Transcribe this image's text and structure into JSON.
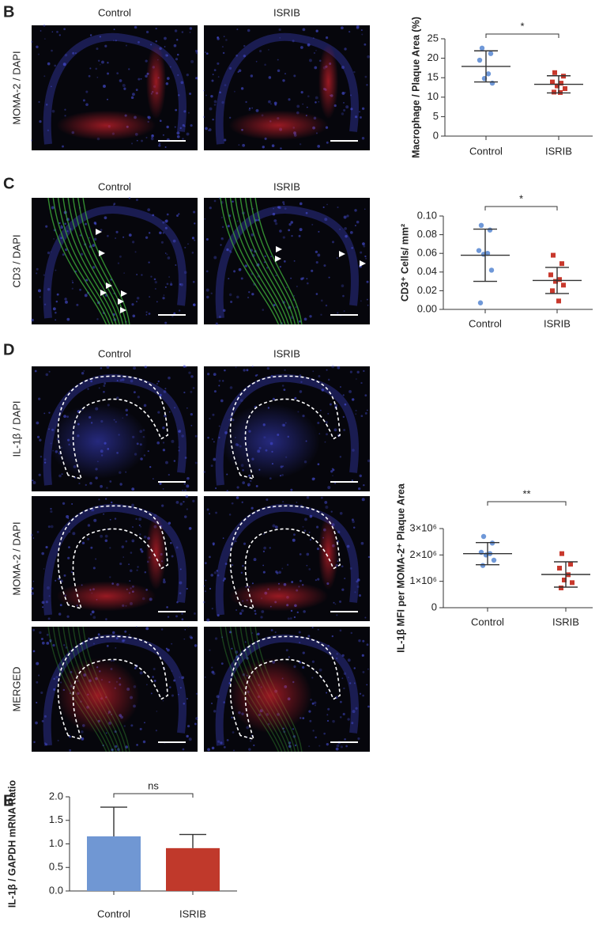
{
  "figure": {
    "B": {
      "label": "B",
      "columns": [
        "Control",
        "ISRIB"
      ],
      "rows": [
        "MOMA-2 / DAPI"
      ]
    },
    "C": {
      "label": "C",
      "columns": [
        "Control",
        "ISRIB"
      ],
      "rows": [
        "CD3 / DAPI"
      ]
    },
    "D": {
      "label": "D",
      "columns": [
        "Control",
        "ISRIB"
      ],
      "rows": [
        "IL-1β / DAPI",
        "MOMA-2 / DAPI",
        "MERGED"
      ]
    },
    "E": {
      "label": "E"
    }
  },
  "chart_data": [
    {
      "type": "dotplot",
      "ylabel": "Macrophage / Plaque Area (%)",
      "categories": [
        "Control",
        "ISRIB"
      ],
      "groups": [
        {
          "color": "#6f98d8",
          "marker": "circle",
          "values": [
            22.6,
            21.2,
            19.5,
            16.0,
            14.8,
            13.6
          ],
          "mean": 17.9,
          "sd": 4.0
        },
        {
          "color": "#c8382c",
          "marker": "square",
          "values": [
            16.3,
            15.4,
            13.9,
            13.6,
            12.9,
            12.2,
            11.3,
            11.2
          ],
          "mean": 13.3,
          "sd": 2.2
        }
      ],
      "ylim": [
        0,
        25
      ],
      "yticks": [
        0,
        5,
        10,
        15,
        20,
        25
      ],
      "annotation": "*"
    },
    {
      "type": "dotplot",
      "ylabel": "CD3⁺ Cells/ mm²",
      "categories": [
        "Control",
        "ISRIB"
      ],
      "groups": [
        {
          "color": "#6f98d8",
          "marker": "circle",
          "values": [
            0.09,
            0.085,
            0.063,
            0.06,
            0.059,
            0.042,
            0.007
          ],
          "mean": 0.058,
          "sd": 0.028
        },
        {
          "color": "#c8382c",
          "marker": "square",
          "values": [
            0.058,
            0.049,
            0.037,
            0.032,
            0.03,
            0.026,
            0.02,
            0.009
          ],
          "mean": 0.031,
          "sd": 0.014
        }
      ],
      "ylim": [
        0,
        0.1
      ],
      "yticks": [
        {
          "value": 0,
          "label": "0.00"
        },
        {
          "value": 0.02,
          "label": "0.02"
        },
        {
          "value": 0.04,
          "label": "0.04"
        },
        {
          "value": 0.06,
          "label": "0.06"
        },
        {
          "value": 0.08,
          "label": "0.08"
        },
        {
          "value": 0.1,
          "label": "0.10"
        }
      ],
      "annotation": "*"
    },
    {
      "type": "dotplot",
      "ylabel": "IL-1β MFI per MOMA-2⁺ Plaque Area",
      "categories": [
        "Control",
        "ISRIB"
      ],
      "groups": [
        {
          "color": "#6f98d8",
          "marker": "circle",
          "values": [
            2700000,
            2450000,
            2100000,
            2050000,
            2000000,
            1800000,
            1600000
          ],
          "mean": 2050000,
          "sd": 420000
        },
        {
          "color": "#c8382c",
          "marker": "square",
          "values": [
            2050000,
            1650000,
            1500000,
            1250000,
            1050000,
            950000,
            750000
          ],
          "mean": 1260000,
          "sd": 480000
        }
      ],
      "ylim": [
        0,
        3000000
      ],
      "yticks": [
        0,
        {
          "value": 1000000,
          "label": "1×10⁶"
        },
        {
          "value": 2000000,
          "label": "2×10⁶"
        },
        {
          "value": 3000000,
          "label": "3×10⁶"
        }
      ],
      "annotation": "**"
    },
    {
      "type": "bar",
      "ylabel": "IL-1β / GAPDH mRNA Ratio",
      "categories": [
        "Control",
        "ISRIB"
      ],
      "values": [
        1.16,
        0.91
      ],
      "errors": [
        0.62,
        0.29
      ],
      "colors": [
        "#7097d3",
        "#c0392b"
      ],
      "ylim": [
        0,
        2
      ],
      "yticks": [
        {
          "value": 0,
          "label": "0.0"
        },
        {
          "value": 0.5,
          "label": "0.5"
        },
        {
          "value": 1,
          "label": "1.0"
        },
        {
          "value": 1.5,
          "label": "1.5"
        },
        {
          "value": 2,
          "label": "2.0"
        }
      ],
      "annotation": "ns"
    }
  ]
}
